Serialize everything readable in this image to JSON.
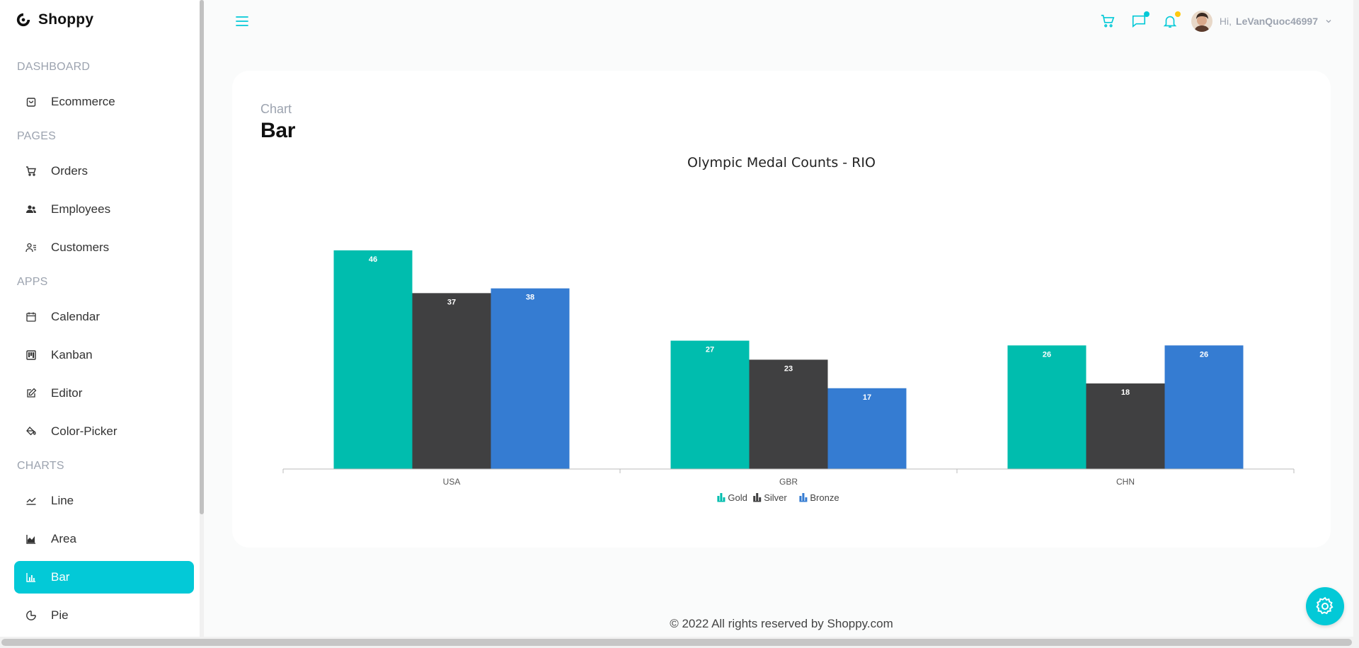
{
  "app": {
    "name": "Shoppy"
  },
  "sidebar": {
    "sections": [
      {
        "title": "DASHBOARD",
        "items": [
          {
            "label": "Ecommerce",
            "icon": "shopping-bag-icon"
          }
        ]
      },
      {
        "title": "PAGES",
        "items": [
          {
            "label": "Orders",
            "icon": "cart-icon"
          },
          {
            "label": "Employees",
            "icon": "people-icon"
          },
          {
            "label": "Customers",
            "icon": "user-list-icon"
          }
        ]
      },
      {
        "title": "APPS",
        "items": [
          {
            "label": "Calendar",
            "icon": "calendar-icon"
          },
          {
            "label": "Kanban",
            "icon": "kanban-icon"
          },
          {
            "label": "Editor",
            "icon": "edit-icon"
          },
          {
            "label": "Color-Picker",
            "icon": "paint-bucket-icon"
          }
        ]
      },
      {
        "title": "CHARTS",
        "items": [
          {
            "label": "Line",
            "icon": "line-chart-icon"
          },
          {
            "label": "Area",
            "icon": "area-chart-icon"
          },
          {
            "label": "Bar",
            "icon": "bar-chart-icon",
            "active": true
          },
          {
            "label": "Pie",
            "icon": "pie-chart-icon"
          }
        ]
      }
    ]
  },
  "header": {
    "greeting": "Hi,",
    "username": "LeVanQuoc46997",
    "icons": [
      "menu-icon",
      "cart-icon",
      "chat-icon",
      "bell-icon"
    ],
    "colors": {
      "accent": "#03c9d7",
      "chat_dot": "#03c9d7",
      "bell_dot": "#fec90f"
    }
  },
  "main": {
    "breadcrumb": "Chart",
    "title": "Bar"
  },
  "chart_data": {
    "type": "bar",
    "title": "Olympic Medal Counts - RIO",
    "categories": [
      "USA",
      "GBR",
      "CHN"
    ],
    "series": [
      {
        "name": "Gold",
        "values": [
          46,
          27,
          26
        ],
        "color": "#00bdae"
      },
      {
        "name": "Silver",
        "values": [
          37,
          23,
          18
        ],
        "color": "#404041"
      },
      {
        "name": "Bronze",
        "values": [
          38,
          17,
          26
        ],
        "color": "#357cd2"
      }
    ],
    "ylim": [
      0,
      50
    ],
    "grid": false,
    "legend": "bottom-center",
    "data_labels": true
  },
  "footer": {
    "text": "© 2022 All rights reserved by Shoppy.com"
  },
  "theme": {
    "accent": "#03c9d7"
  }
}
